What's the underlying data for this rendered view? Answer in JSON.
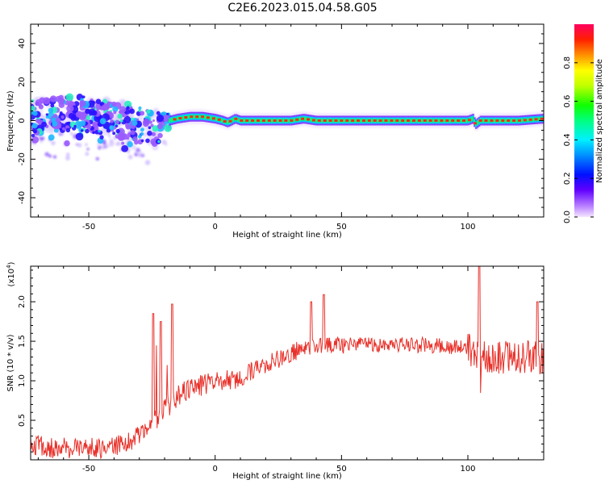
{
  "figure_title": "C2E6.2023.015.04.58.G05",
  "colors": {
    "snr_line": "#e8312a",
    "axis": "#000000"
  },
  "chart_data": [
    {
      "type": "heatmap",
      "title": "C2E6.2023.015.04.58.G05",
      "xlabel": "Height of straight line (km)",
      "ylabel": "Frequency (Hz)",
      "xlim": [
        -73,
        130
      ],
      "ylim": [
        -50,
        50
      ],
      "x_ticks": [
        -50,
        0,
        50,
        100
      ],
      "y_ticks": [
        -40,
        -20,
        0,
        20,
        40
      ],
      "colorbar": {
        "label": "Normalized spectral amplitude",
        "range": [
          0,
          1
        ],
        "ticks": [
          "0.0",
          "0.2",
          "0.4",
          "0.6",
          "0.8"
        ],
        "colormap": "rainbow (violet to red)"
      },
      "ridge_profile": {
        "x": [
          -73,
          -65,
          -55,
          -45,
          -35,
          -30,
          -25,
          -22,
          -20,
          -18,
          -15,
          -10,
          -5,
          0,
          3,
          5,
          8,
          10,
          20,
          30,
          35,
          40,
          45,
          50,
          60,
          70,
          80,
          90,
          100,
          102,
          103,
          105,
          110,
          120,
          130
        ],
        "y": [
          2,
          3,
          4,
          2,
          0,
          -2,
          -3,
          -2,
          -1,
          0,
          1,
          2,
          2,
          1,
          0,
          -1,
          1,
          0,
          0,
          0,
          1,
          0,
          0,
          0,
          0,
          0,
          0,
          0,
          0,
          1,
          -2,
          0,
          0,
          0,
          1
        ]
      },
      "grid": false
    },
    {
      "type": "line",
      "xlabel": "Height of straight line (km)",
      "ylabel": "SNR (10 * v/v)",
      "y_multiplier": "(x10",
      "y_multiplier_exp": "4",
      "y_multiplier_close": ")",
      "xlim": [
        -73,
        130
      ],
      "ylim": [
        0,
        2.45
      ],
      "x_ticks": [
        -50,
        0,
        50,
        100
      ],
      "y_ticks": [
        "0.5",
        "1.0",
        "1.5",
        "2.0"
      ],
      "trend": {
        "x": [
          -73,
          -65,
          -55,
          -45,
          -35,
          -30,
          -25,
          -22,
          -20,
          -18,
          -15,
          -10,
          -5,
          0,
          5,
          10,
          20,
          30,
          40,
          50,
          60,
          70,
          80,
          90,
          100,
          104,
          105,
          106,
          110,
          120,
          130
        ],
        "y": [
          0.2,
          0.15,
          0.15,
          0.15,
          0.2,
          0.3,
          0.45,
          0.55,
          0.7,
          0.7,
          0.8,
          0.9,
          0.95,
          1.0,
          1.0,
          1.05,
          1.2,
          1.35,
          1.45,
          1.45,
          1.45,
          1.45,
          1.45,
          1.45,
          1.4,
          1.3,
          1.0,
          1.3,
          1.3,
          1.3,
          1.3
        ]
      },
      "spikes": [
        {
          "x": -24.5,
          "y": 1.85
        },
        {
          "x": -21.5,
          "y": 1.75
        },
        {
          "x": -17,
          "y": 1.97
        },
        {
          "x": 38,
          "y": 2.0
        },
        {
          "x": 43,
          "y": 2.09
        },
        {
          "x": 104.5,
          "y": 2.45
        },
        {
          "x": 127.5,
          "y": 2.0
        }
      ],
      "series": [
        {
          "color": "#e8312a"
        }
      ],
      "grid": false
    }
  ]
}
